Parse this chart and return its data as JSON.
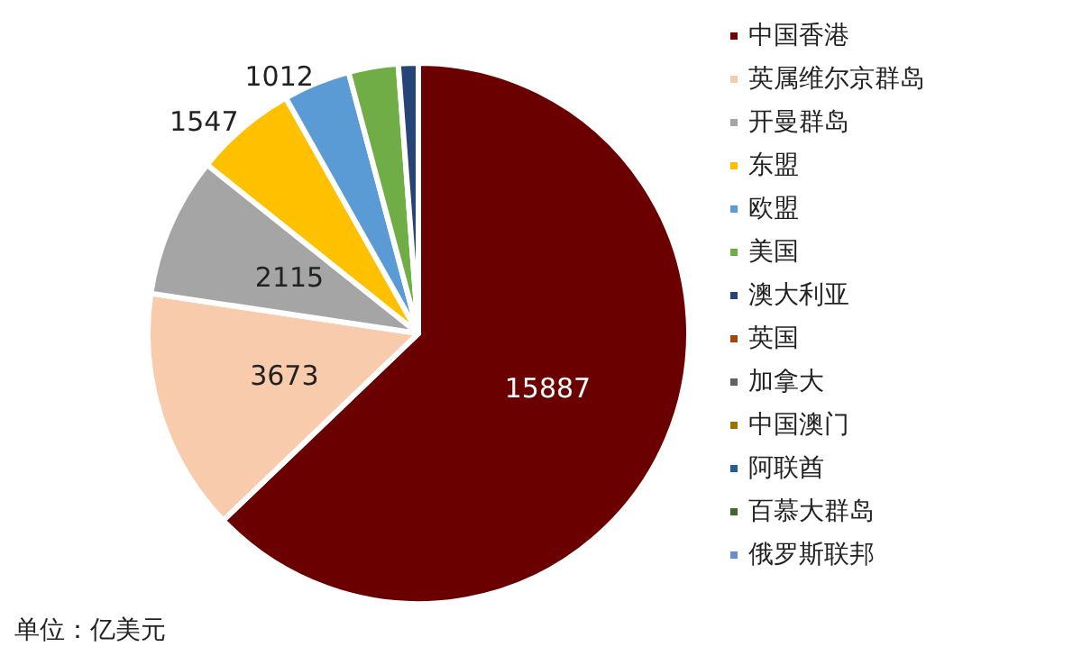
{
  "chart_data": {
    "type": "pie",
    "categories": [
      "中国香港",
      "英属维尔京群岛",
      "开曼群岛",
      "东盟",
      "欧盟",
      "美国",
      "澳大利亚",
      "英国",
      "加拿大",
      "中国澳门",
      "阿联酋",
      "百慕大群岛",
      "俄罗斯联邦"
    ],
    "values": [
      15887,
      3673,
      2115,
      1547,
      1012,
      750,
      300,
      null,
      null,
      null,
      null,
      null,
      null
    ],
    "colors": [
      "#6b0000",
      "#f8cbad",
      "#a5a5a5",
      "#ffc000",
      "#5b9bd5",
      "#70ad47",
      "#264478",
      "#9e480e",
      "#636363",
      "#997300",
      "#255e91",
      "#43682b",
      "#698ed0"
    ],
    "value_labels": [
      "15887",
      "3673",
      "2115",
      "1547",
      "1012",
      null,
      null,
      null,
      null,
      null,
      null,
      null,
      null
    ],
    "legend": "right",
    "annotations": [
      "单位：亿美元"
    ]
  }
}
